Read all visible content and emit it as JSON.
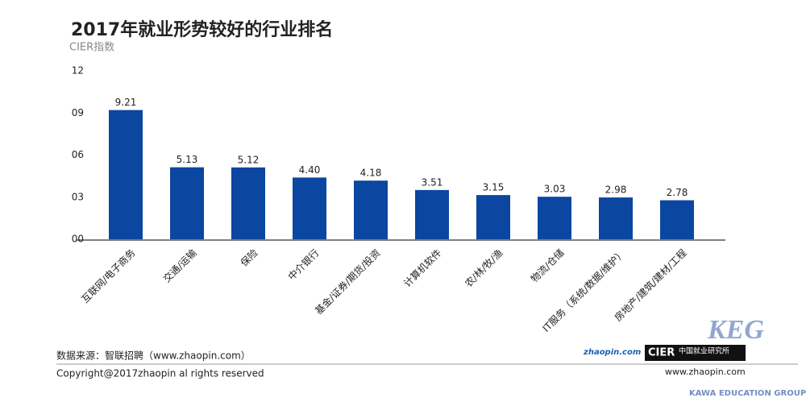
{
  "chart_data": {
    "type": "bar",
    "title": "2017年就业形势较好的行业排名",
    "subtitle": "CIER指数",
    "categories": [
      "互联网/电子商务",
      "交通/运输",
      "保险",
      "中介银行",
      "基金/证券/期货/投资",
      "计算机软件",
      "农/林/牧/渔",
      "物流/仓储",
      "IT服务（系统/数据/维护）",
      "房地产/建筑/建材/工程"
    ],
    "values": [
      9.21,
      5.13,
      5.12,
      4.4,
      4.18,
      3.51,
      3.15,
      3.03,
      2.98,
      2.78
    ],
    "value_labels": [
      "9.21",
      "5.13",
      "5.12",
      "4.40",
      "4.18",
      "3.51",
      "3.15",
      "3.03",
      "2.98",
      "2.78"
    ],
    "color": "#0b46a0",
    "ylim": [
      0,
      12
    ],
    "yticks": [
      {
        "value": 0,
        "label": "00"
      },
      {
        "value": 3,
        "label": "03"
      },
      {
        "value": 6,
        "label": "06"
      },
      {
        "value": 9,
        "label": "09"
      },
      12
    ],
    "grid": false,
    "source": "数据来源：智联招聘（www.zhaopin.com）",
    "copyright": "Copyright@2017zhaopin al rights reserved",
    "website": "www.zhaopin.com",
    "logo_zhaopin": "zhaopin.com",
    "logo_cier": "CIER",
    "logo_institute": "中国就业研究所",
    "watermark": "KEG",
    "watermark_group": "KAWA EDUCATION GROUP"
  }
}
